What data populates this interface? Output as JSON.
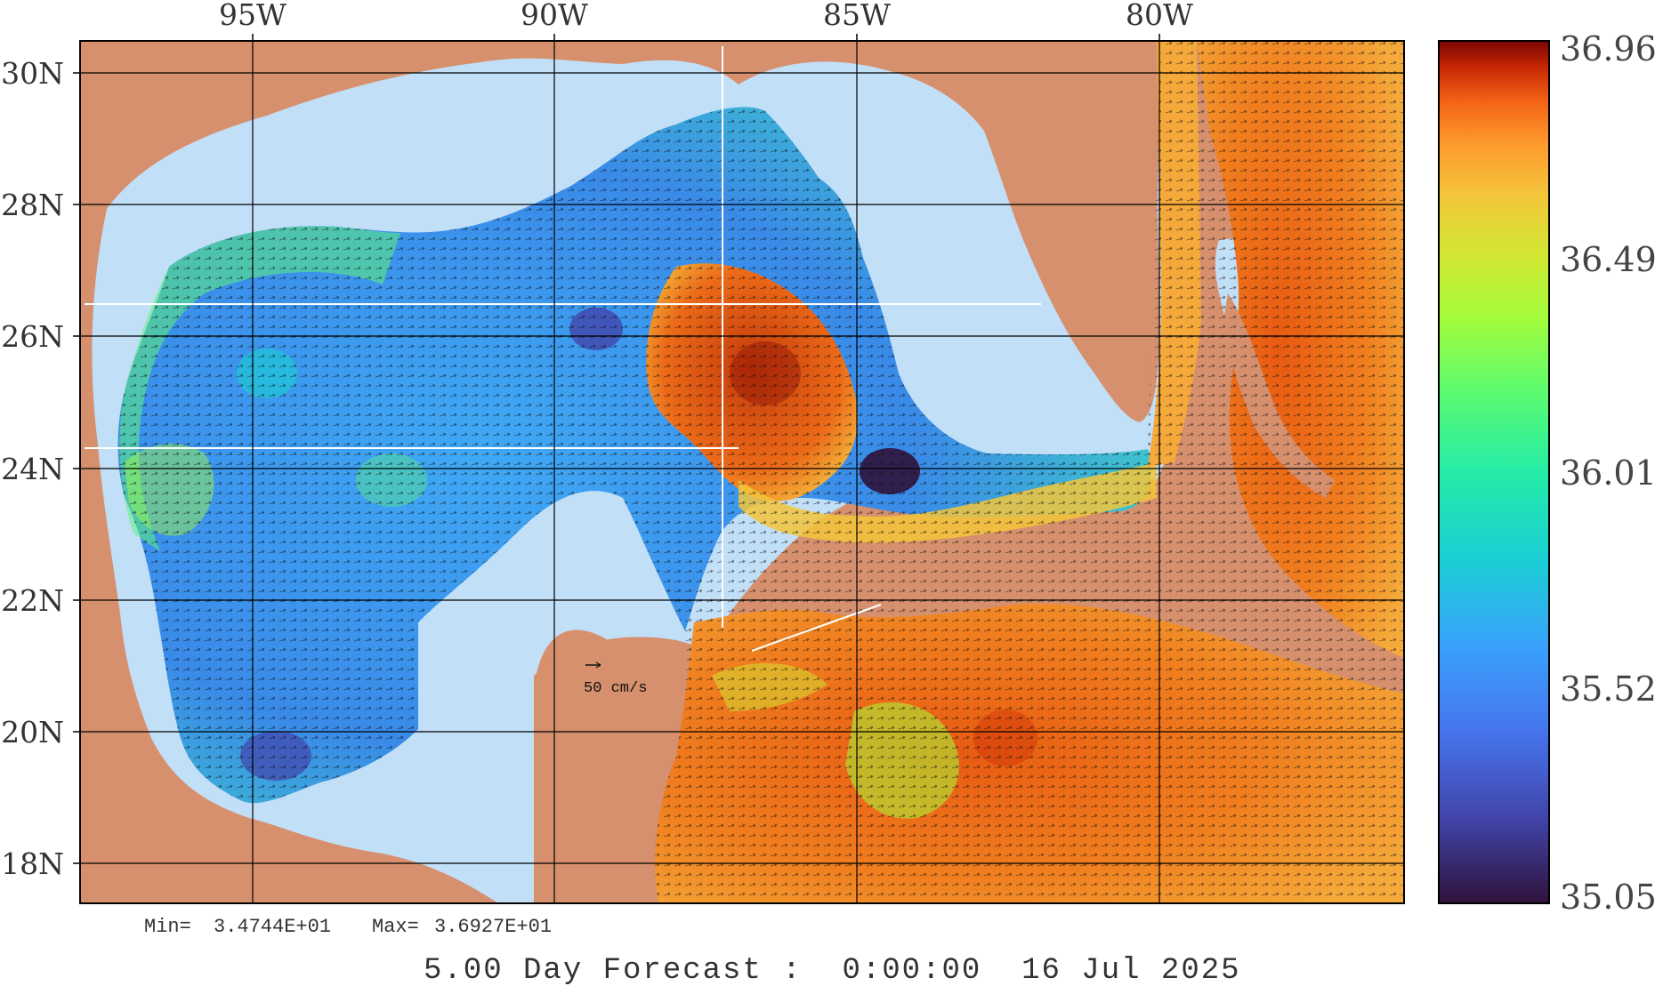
{
  "map": {
    "longitude_labels": [
      "95W",
      "90W",
      "85W",
      "80W"
    ],
    "latitude_labels": [
      "30N",
      "28N",
      "26N",
      "24N",
      "22N",
      "20N",
      "18N"
    ],
    "vector_scale_label": "50 cm/s",
    "colors": {
      "land": "#d6906e",
      "shelf_water": "#c2dff8",
      "frame": "#000000"
    }
  },
  "colorbar": {
    "labels": [
      "36.96",
      "36.49",
      "36.01",
      "35.52",
      "35.05"
    ],
    "min": 35.05,
    "max": 36.96,
    "colormap": "turbo"
  },
  "stats": {
    "min_label": "Min=",
    "min_value": "3.4744E+01",
    "max_label": "Max=",
    "max_value": "3.6927E+01"
  },
  "footer": {
    "forecast_text": "5.00 Day Forecast :  0:00:00  16 Jul 2025"
  }
}
